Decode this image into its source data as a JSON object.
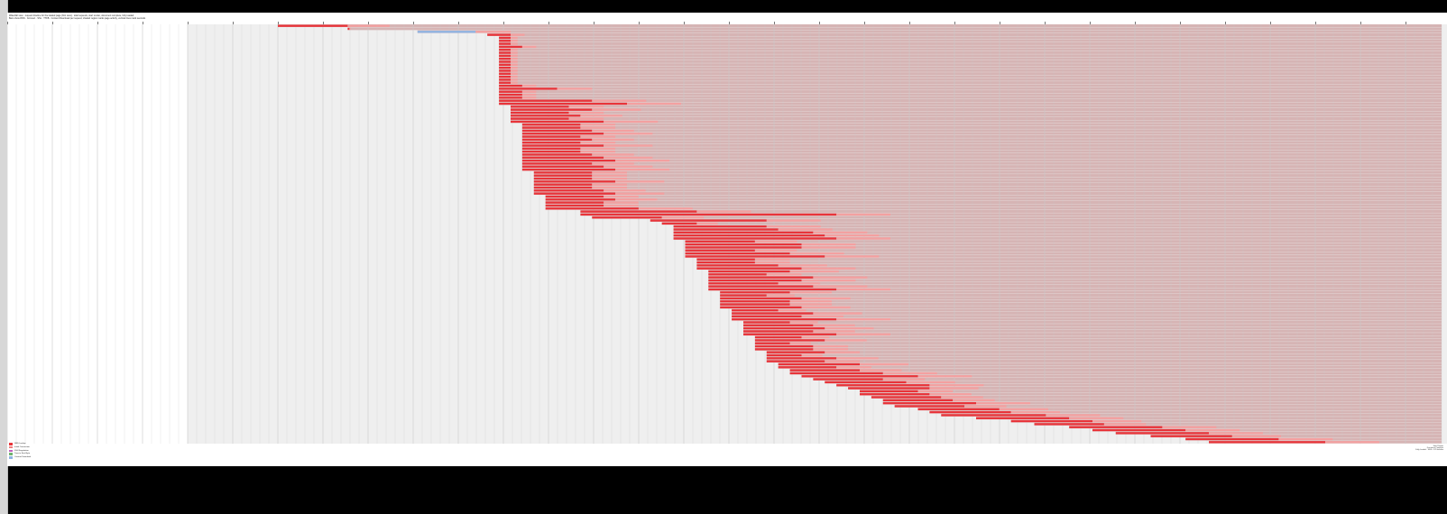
{
  "window": {
    "header_lines": [
      "Waterfall view · request timeline for the loaded page (first view) · total requests, start render, document complete, fully loaded",
      "Bars show DNS · Connect · SSL · TTFB · Content Download per request; shaded region marks page activity, vertical lines mark seconds"
    ]
  },
  "colors": {
    "page_background": "#ffffff",
    "activity_shade": "#d6b4b4",
    "timeline_shade": "#efefef",
    "request_bar": "#e8343a",
    "request_bar_light": "#f3a0a0",
    "selected_bar": "#8fb4e3",
    "gridline": "#c9c9c9"
  },
  "legend": {
    "items": [
      {
        "label": "DNS Lookup",
        "color": "#e8343a"
      },
      {
        "label": "Initial Connection",
        "color": "#f08080"
      },
      {
        "label": "SSL Negotiation",
        "color": "#c060c0"
      },
      {
        "label": "Time to First Byte",
        "color": "#6fb36f"
      },
      {
        "label": "Content Download",
        "color": "#8fb4e3"
      }
    ]
  },
  "footer": {
    "lines": [
      "Start Render",
      "Document Complete",
      "Fully Loaded · 1604 × 570 timeline"
    ]
  },
  "requests": [
    [
      0,
      0.06
    ],
    [
      0.06,
      0.06
    ],
    [
      0.12,
      0.17
    ],
    [
      0.18,
      0.2
    ],
    [
      0.19,
      0.2
    ],
    [
      0.19,
      0.2
    ],
    [
      0.19,
      0.2
    ],
    [
      0.19,
      0.21
    ],
    [
      0.19,
      0.2
    ],
    [
      0.19,
      0.2
    ],
    [
      0.19,
      0.2
    ],
    [
      0.19,
      0.2
    ],
    [
      0.19,
      0.2
    ],
    [
      0.19,
      0.2
    ],
    [
      0.19,
      0.2
    ],
    [
      0.19,
      0.2
    ],
    [
      0.19,
      0.2
    ],
    [
      0.19,
      0.2
    ],
    [
      0.19,
      0.2
    ],
    [
      0.19,
      0.2
    ],
    [
      0.19,
      0.21
    ],
    [
      0.19,
      0.24
    ],
    [
      0.19,
      0.21
    ],
    [
      0.19,
      0.21
    ],
    [
      0.19,
      0.21
    ],
    [
      0.19,
      0.27
    ],
    [
      0.19,
      0.3
    ],
    [
      0.2,
      0.25
    ],
    [
      0.2,
      0.27
    ],
    [
      0.2,
      0.25
    ],
    [
      0.2,
      0.26
    ],
    [
      0.2,
      0.25
    ],
    [
      0.2,
      0.28
    ],
    [
      0.21,
      0.26
    ],
    [
      0.21,
      0.26
    ],
    [
      0.21,
      0.27
    ],
    [
      0.21,
      0.28
    ],
    [
      0.21,
      0.26
    ],
    [
      0.21,
      0.27
    ],
    [
      0.21,
      0.26
    ],
    [
      0.21,
      0.28
    ],
    [
      0.21,
      0.26
    ],
    [
      0.21,
      0.26
    ],
    [
      0.21,
      0.27
    ],
    [
      0.21,
      0.28
    ],
    [
      0.21,
      0.29
    ],
    [
      0.21,
      0.27
    ],
    [
      0.21,
      0.28
    ],
    [
      0.21,
      0.29
    ],
    [
      0.22,
      0.27
    ],
    [
      0.22,
      0.27
    ],
    [
      0.22,
      0.27
    ],
    [
      0.22,
      0.29
    ],
    [
      0.22,
      0.27
    ],
    [
      0.22,
      0.27
    ],
    [
      0.22,
      0.28
    ],
    [
      0.22,
      0.29
    ],
    [
      0.23,
      0.28
    ],
    [
      0.23,
      0.29
    ],
    [
      0.23,
      0.28
    ],
    [
      0.23,
      0.28
    ],
    [
      0.23,
      0.31
    ],
    [
      0.26,
      0.36
    ],
    [
      0.26,
      0.48
    ],
    [
      0.27,
      0.33
    ],
    [
      0.32,
      0.42
    ],
    [
      0.33,
      0.36
    ],
    [
      0.34,
      0.42
    ],
    [
      0.34,
      0.43
    ],
    [
      0.34,
      0.46
    ],
    [
      0.34,
      0.47
    ],
    [
      0.34,
      0.48
    ],
    [
      0.35,
      0.41
    ],
    [
      0.35,
      0.45
    ],
    [
      0.35,
      0.45
    ],
    [
      0.35,
      0.41
    ],
    [
      0.35,
      0.44
    ],
    [
      0.35,
      0.47
    ],
    [
      0.36,
      0.41
    ],
    [
      0.36,
      0.41
    ],
    [
      0.36,
      0.43
    ],
    [
      0.36,
      0.45
    ],
    [
      0.37,
      0.44
    ],
    [
      0.37,
      0.42
    ],
    [
      0.37,
      0.46
    ],
    [
      0.37,
      0.45
    ],
    [
      0.37,
      0.43
    ],
    [
      0.37,
      0.46
    ],
    [
      0.37,
      0.48
    ],
    [
      0.38,
      0.44
    ],
    [
      0.38,
      0.42
    ],
    [
      0.38,
      0.45
    ],
    [
      0.38,
      0.44
    ],
    [
      0.38,
      0.44
    ],
    [
      0.38,
      0.45
    ],
    [
      0.39,
      0.43
    ],
    [
      0.39,
      0.46
    ],
    [
      0.39,
      0.45
    ],
    [
      0.39,
      0.48
    ],
    [
      0.4,
      0.44
    ],
    [
      0.4,
      0.46
    ],
    [
      0.4,
      0.47
    ],
    [
      0.4,
      0.46
    ],
    [
      0.4,
      0.48
    ],
    [
      0.41,
      0.45
    ],
    [
      0.41,
      0.47
    ],
    [
      0.41,
      0.44
    ],
    [
      0.41,
      0.46
    ],
    [
      0.41,
      0.46
    ],
    [
      0.42,
      0.47
    ],
    [
      0.42,
      0.45
    ],
    [
      0.42,
      0.48
    ],
    [
      0.42,
      0.47
    ],
    [
      0.43,
      0.5
    ],
    [
      0.43,
      0.48
    ],
    [
      0.44,
      0.5
    ],
    [
      0.44,
      0.52
    ],
    [
      0.45,
      0.55
    ],
    [
      0.46,
      0.52
    ],
    [
      0.47,
      0.54
    ],
    [
      0.48,
      0.56
    ],
    [
      0.49,
      0.56
    ],
    [
      0.5,
      0.55
    ],
    [
      0.5,
      0.56
    ],
    [
      0.51,
      0.57
    ],
    [
      0.52,
      0.58
    ],
    [
      0.52,
      0.6
    ],
    [
      0.53,
      0.59
    ],
    [
      0.55,
      0.62
    ],
    [
      0.56,
      0.63
    ],
    [
      0.57,
      0.66
    ],
    [
      0.6,
      0.68
    ],
    [
      0.63,
      0.7
    ],
    [
      0.65,
      0.71
    ],
    [
      0.68,
      0.76
    ],
    [
      0.7,
      0.78
    ],
    [
      0.72,
      0.8
    ],
    [
      0.75,
      0.82
    ],
    [
      0.78,
      0.86
    ],
    [
      0.8,
      0.9
    ]
  ]
}
